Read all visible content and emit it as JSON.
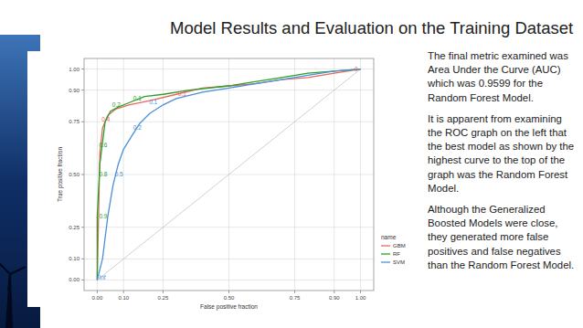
{
  "slide": {
    "title": "Model Results and Evaluation on the Training Dataset",
    "paragraphs": [
      "The final metric examined was Area Under the Curve (AUC) which was 0.9599 for the Random Forest Model.",
      "It is apparent from examining the ROC graph on the left that the best model as shown by the highest curve to the top of the graph was the Random Forest Model.",
      "Although the Generalized Boosted Models were close, they generated more false positives and false negatives than the Random Forest Model."
    ]
  },
  "chart_data": {
    "type": "line",
    "x_label": "False positive fraction",
    "y_label": "True positive fraction",
    "legend_title": "name",
    "legend": "right",
    "grid": true,
    "xlim": [
      -0.05,
      1.05
    ],
    "ylim": [
      -0.05,
      1.05
    ],
    "xticks": [
      {
        "value": 0,
        "label": "0.00"
      },
      {
        "value": 0.1,
        "label": "0.10"
      },
      {
        "value": 0.25,
        "label": "0.25"
      },
      {
        "value": 0.5,
        "label": "0.50"
      },
      {
        "value": 0.75,
        "label": "0.75"
      },
      {
        "value": 0.9,
        "label": "0.90"
      },
      {
        "value": 1,
        "label": "1.00"
      }
    ],
    "yticks": [
      {
        "value": 0,
        "label": "0.00"
      },
      {
        "value": 0.1,
        "label": "0.10"
      },
      {
        "value": 0.25,
        "label": "0.25"
      },
      {
        "value": 0.5,
        "label": "0.50"
      },
      {
        "value": 0.75,
        "label": "0.75"
      },
      {
        "value": 0.9,
        "label": "0.90"
      },
      {
        "value": 1,
        "label": "1.00"
      }
    ],
    "series": [
      {
        "name": "GBM",
        "color": "#e8665f",
        "x": [
          0,
          0.005,
          0.01,
          0.02,
          0.04,
          0.07,
          0.12,
          0.2,
          0.3,
          0.4,
          0.5,
          0.6,
          0.7,
          0.8,
          0.9,
          1
        ],
        "values": [
          0,
          0.3,
          0.6,
          0.72,
          0.78,
          0.81,
          0.83,
          0.85,
          0.88,
          0.91,
          0.92,
          0.93,
          0.95,
          0.96,
          0.98,
          1
        ]
      },
      {
        "name": "RF",
        "color": "#2aa02a",
        "x": [
          0,
          0,
          0.01,
          0.02,
          0.03,
          0.05,
          0.08,
          0.12,
          0.18,
          0.25,
          0.35,
          0.5,
          0.6,
          0.7,
          0.8,
          0.9,
          1
        ],
        "values": [
          0,
          0.3,
          0.55,
          0.65,
          0.75,
          0.8,
          0.82,
          0.84,
          0.87,
          0.88,
          0.9,
          0.92,
          0.94,
          0.96,
          0.98,
          0.99,
          1
        ]
      },
      {
        "name": "SVM",
        "color": "#4a90d9",
        "x": [
          0,
          0.02,
          0.04,
          0.06,
          0.08,
          0.1,
          0.13,
          0.16,
          0.2,
          0.25,
          0.3,
          0.4,
          0.5,
          0.6,
          0.7,
          0.8,
          0.9,
          1
        ],
        "values": [
          0,
          0.1,
          0.3,
          0.45,
          0.55,
          0.62,
          0.68,
          0.74,
          0.79,
          0.83,
          0.86,
          0.89,
          0.91,
          0.93,
          0.95,
          0.97,
          0.99,
          1
        ]
      }
    ],
    "annotations": [
      {
        "text": "0.9",
        "x": 0.0,
        "y": 0.3,
        "series": "RF"
      },
      {
        "text": "0.8",
        "x": 0.0,
        "y": 0.5,
        "series": "RF"
      },
      {
        "text": "0.6",
        "x": 0.0,
        "y": 0.64,
        "series": "RF"
      },
      {
        "text": "0.4",
        "x": 0.01,
        "y": 0.76,
        "series": "GBM"
      },
      {
        "text": "0.2",
        "x": 0.05,
        "y": 0.83,
        "series": "RF"
      },
      {
        "text": "0.1",
        "x": 0.13,
        "y": 0.86,
        "series": "RF"
      },
      {
        "text": "0.5",
        "x": 0.06,
        "y": 0.5,
        "series": "SVM"
      },
      {
        "text": "0.2",
        "x": 0.13,
        "y": 0.72,
        "series": "SVM"
      },
      {
        "text": "0.1",
        "x": 0.19,
        "y": 0.84,
        "series": "SVM"
      },
      {
        "text": "0.1",
        "x": 0.3,
        "y": 0.88,
        "series": "GBM"
      },
      {
        "text": "Inf",
        "x": 0.0,
        "y": 0.01,
        "series": "SVM"
      },
      {
        "text": "0",
        "x": 0.97,
        "y": 1.0,
        "series": "GBM"
      }
    ]
  }
}
